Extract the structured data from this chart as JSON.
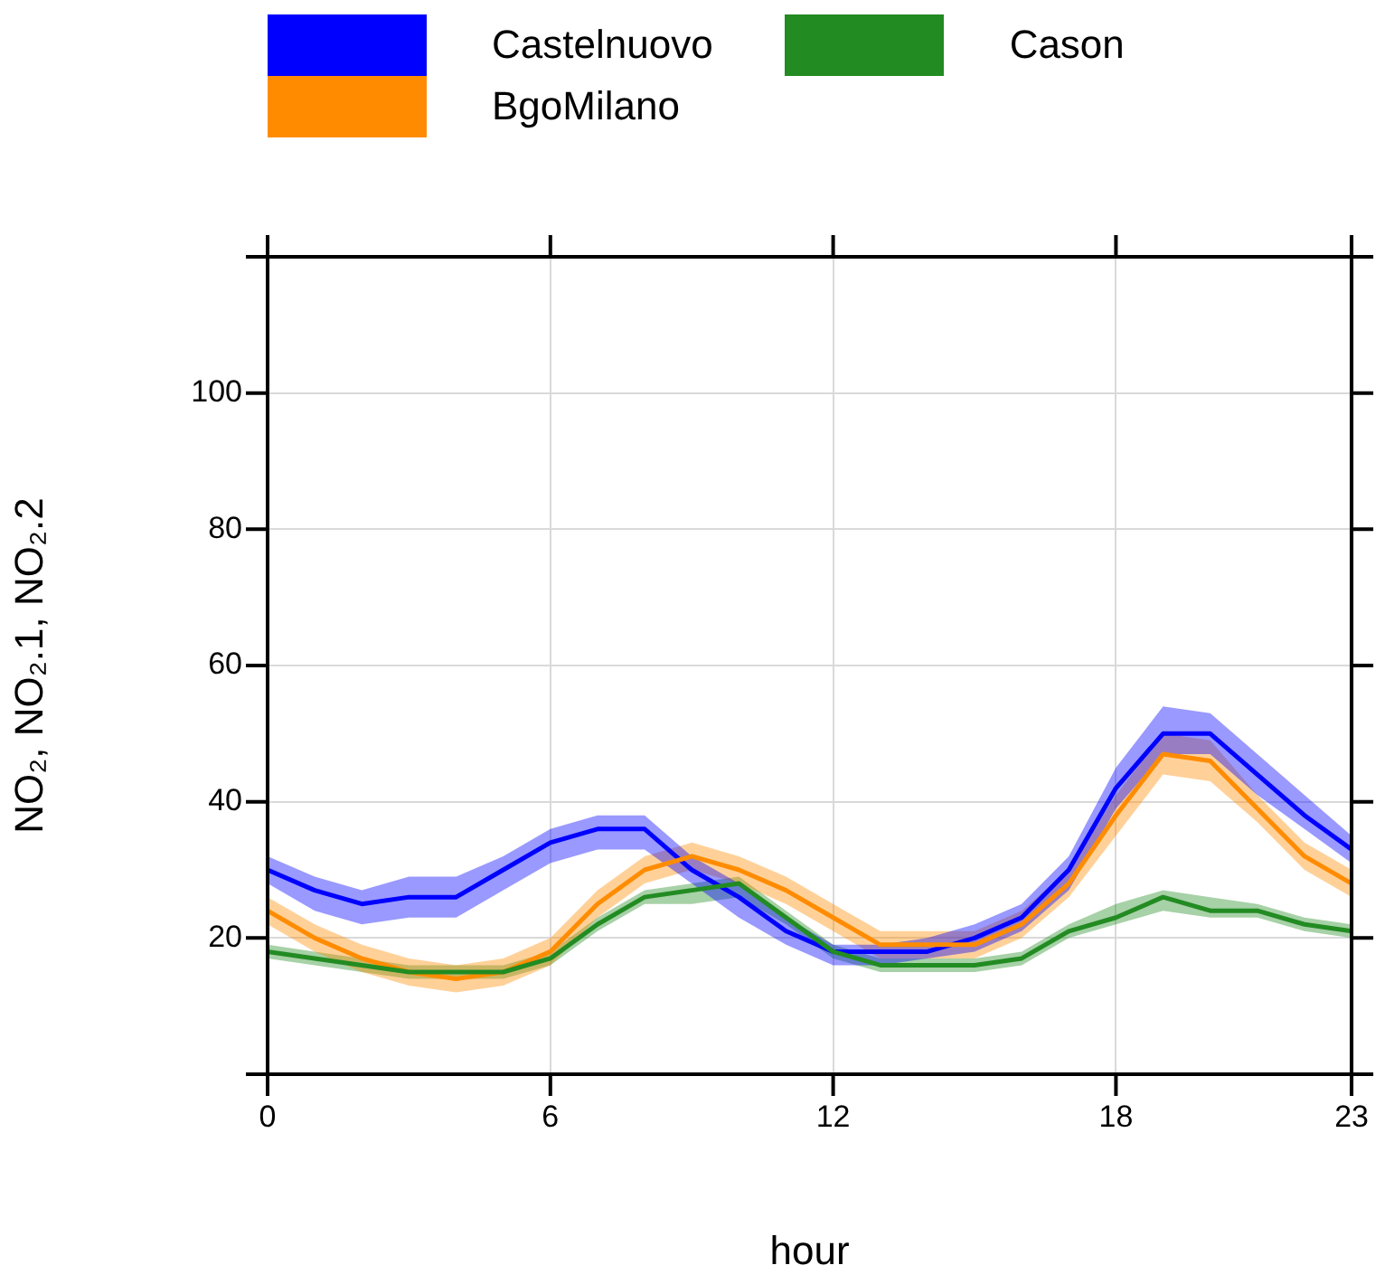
{
  "chart_data": {
    "type": "line",
    "xlabel": "hour",
    "ylabel": "NO₂, NO₂.1, NO₂.2",
    "x": [
      0,
      1,
      2,
      3,
      4,
      5,
      6,
      7,
      8,
      9,
      10,
      11,
      12,
      13,
      14,
      15,
      16,
      17,
      18,
      19,
      20,
      21,
      22,
      23
    ],
    "series": [
      {
        "name": "Castelnuovo",
        "color": "#0000ff",
        "values": [
          30,
          27,
          25,
          26,
          26,
          30,
          34,
          36,
          36,
          30,
          26,
          21,
          18,
          18,
          18,
          20,
          23,
          30,
          42,
          50,
          50,
          44,
          38,
          33
        ],
        "lower": [
          28,
          24,
          22,
          23,
          23,
          27,
          31,
          33,
          33,
          28,
          23,
          19,
          16,
          16,
          17,
          18,
          21,
          27,
          39,
          47,
          47,
          41,
          36,
          31
        ],
        "upper": [
          32,
          29,
          27,
          29,
          29,
          32,
          36,
          38,
          38,
          32,
          28,
          23,
          19,
          19,
          20,
          22,
          25,
          32,
          45,
          54,
          53,
          47,
          41,
          35
        ]
      },
      {
        "name": "BgoMilano",
        "color": "#ff8c00",
        "values": [
          24,
          20,
          17,
          15,
          14,
          15,
          18,
          25,
          30,
          32,
          30,
          27,
          23,
          19,
          19,
          19,
          22,
          28,
          38,
          47,
          46,
          39,
          32,
          28
        ],
        "lower": [
          22,
          18,
          15,
          13,
          12,
          13,
          16,
          23,
          28,
          30,
          28,
          25,
          21,
          17,
          17,
          17,
          20,
          26,
          35,
          44,
          43,
          37,
          30,
          26
        ],
        "upper": [
          26,
          22,
          19,
          17,
          16,
          17,
          20,
          27,
          32,
          34,
          32,
          29,
          25,
          21,
          21,
          21,
          24,
          30,
          41,
          50,
          49,
          41,
          34,
          30
        ]
      },
      {
        "name": "Cason",
        "color": "#228b22",
        "values": [
          18,
          17,
          16,
          15,
          15,
          15,
          17,
          22,
          26,
          27,
          28,
          23,
          18,
          16,
          16,
          16,
          17,
          21,
          23,
          26,
          24,
          24,
          22,
          21
        ],
        "lower": [
          17,
          16,
          15,
          14,
          14,
          14,
          16,
          21,
          25,
          25,
          26,
          22,
          17,
          15,
          15,
          15,
          16,
          20,
          22,
          24,
          23,
          23,
          21,
          20
        ],
        "upper": [
          19,
          18,
          17,
          16,
          16,
          16,
          18,
          23,
          27,
          28,
          29,
          24,
          19,
          17,
          17,
          17,
          18,
          22,
          25,
          27,
          26,
          25,
          23,
          22
        ]
      }
    ],
    "xlim": [
      0,
      23
    ],
    "xticks": [
      0,
      6,
      12,
      18,
      23
    ],
    "ylim": [
      0,
      120
    ],
    "yticks": [
      {
        "value": 0,
        "label": null
      },
      20,
      40,
      60,
      80,
      100,
      {
        "value": 120,
        "label": null
      }
    ],
    "grid": true,
    "legend": "top",
    "marker": "none",
    "line_style": "solid"
  }
}
